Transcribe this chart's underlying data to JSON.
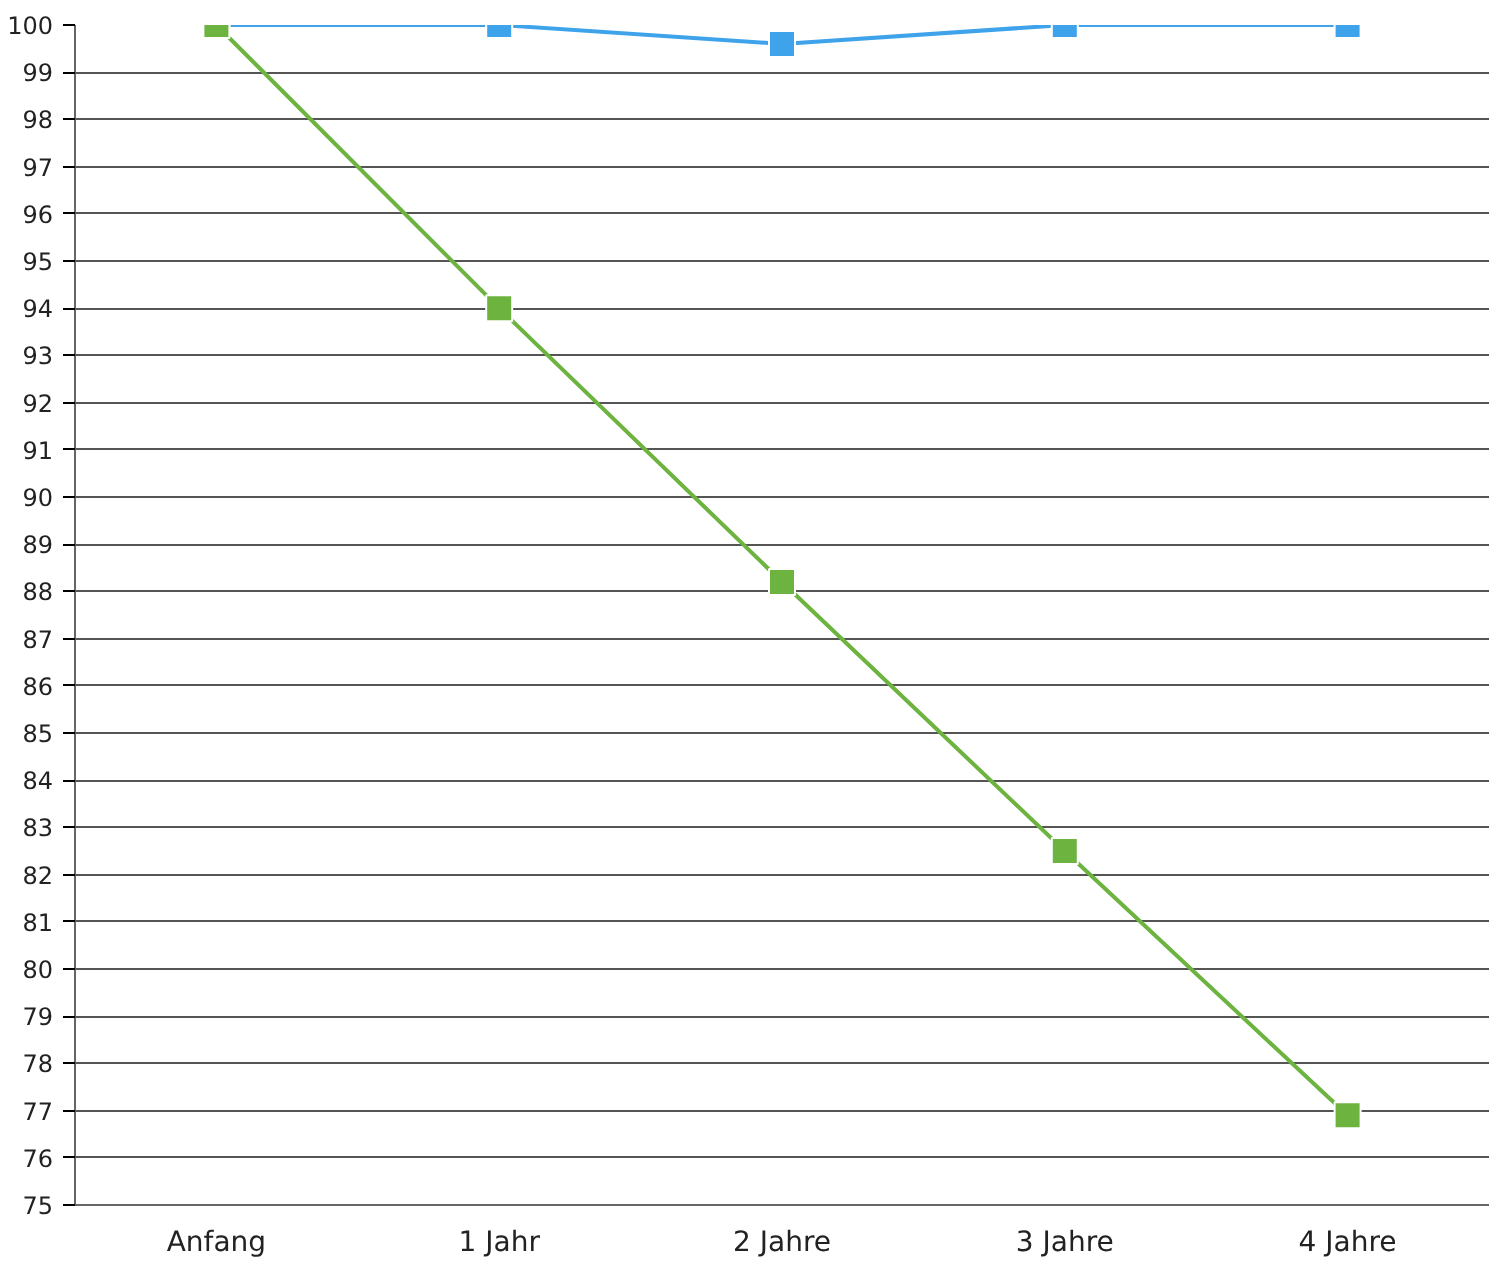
{
  "chart_data": {
    "type": "line",
    "categories": [
      "Anfang",
      "1 Jahr",
      "2 Jahre",
      "3 Jahre",
      "4 Jahre"
    ],
    "series": [
      {
        "color": "#3ea3ea",
        "values": [
          100,
          100,
          99.6,
          100,
          100
        ]
      },
      {
        "color": "#6cb33f",
        "values": [
          100,
          94,
          88.2,
          82.5,
          76.9
        ]
      }
    ],
    "ylim": [
      75,
      100
    ],
    "yticks": [
      75,
      76,
      77,
      78,
      79,
      80,
      81,
      82,
      83,
      84,
      85,
      86,
      87,
      88,
      89,
      90,
      91,
      92,
      93,
      94,
      95,
      96,
      97,
      98,
      99,
      100
    ],
    "grid": "y",
    "marker": "square",
    "line_style": "solid"
  }
}
